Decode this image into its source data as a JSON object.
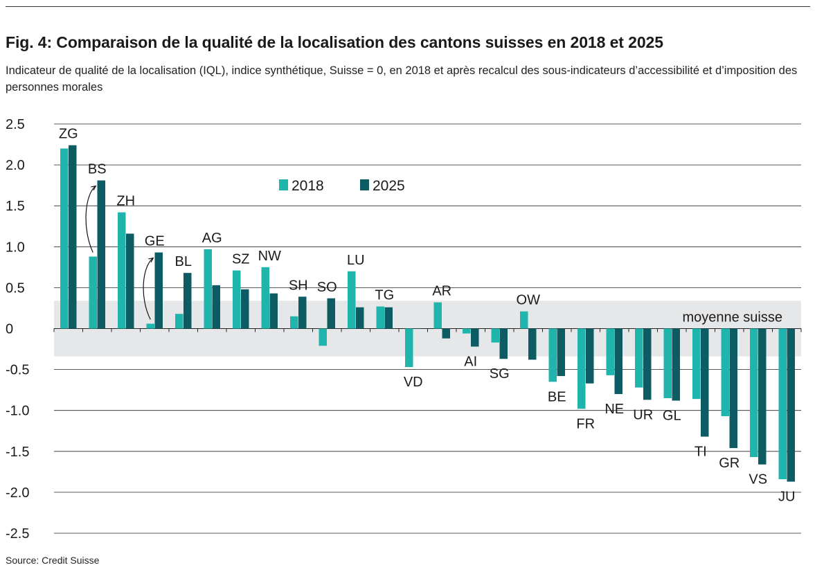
{
  "header": {
    "title": "Fig. 4: Comparaison de la qualité de la localisation des cantons suisses en 2018 et 2025",
    "subtitle": "Indicateur de qualité de la localisation (IQL), indice synthétique, Suisse = 0, en 2018 et après recalcul des sous-indicateurs d’accessibilité et d’imposition des personnes morales"
  },
  "footer": {
    "source": "Source: Credit Suisse"
  },
  "colors": {
    "series_2018": "#1fb5ad",
    "series_2025": "#0d5c63",
    "band": "#e6e7e8",
    "grid": "#222222"
  },
  "chart_data": {
    "type": "bar",
    "title": "Fig. 4: Comparaison de la qualité de la localisation des cantons suisses en 2018 et 2025",
    "subtitle": "Indicateur de qualité de la localisation (IQL), indice synthétique, Suisse = 0, en 2018 et après recalcul des sous-indicateurs d’accessibilité et d’imposition des personnes morales",
    "xlabel": "",
    "ylabel": "",
    "ylim": [
      -2.5,
      2.5
    ],
    "yticks": [
      "2.5",
      "2.0",
      "1.5",
      "1.0",
      "0.5",
      "0",
      "-0.5",
      "-1.0",
      "-1.5",
      "-2.0",
      "-2.5"
    ],
    "grid": true,
    "legend_position": "top-center",
    "categories": [
      "ZG",
      "BS",
      "ZH",
      "GE",
      "BL",
      "AG",
      "SZ",
      "NW",
      "SH",
      "SO",
      "LU",
      "TG",
      "VD",
      "AR",
      "AI",
      "SG",
      "OW",
      "BE",
      "FR",
      "NE",
      "UR",
      "GL",
      "TI",
      "GR",
      "VS",
      "JU"
    ],
    "series": [
      {
        "name": "2018",
        "values": [
          2.2,
          0.88,
          1.42,
          0.06,
          0.18,
          0.97,
          0.71,
          0.75,
          0.15,
          -0.21,
          0.7,
          0.27,
          -0.47,
          0.32,
          -0.06,
          -0.17,
          0.21,
          -0.65,
          -0.98,
          -0.57,
          -0.72,
          -0.85,
          -0.86,
          -1.07,
          -1.57,
          -1.84
        ]
      },
      {
        "name": "2025",
        "values": [
          2.24,
          1.81,
          1.16,
          0.93,
          0.68,
          0.53,
          0.48,
          0.43,
          0.39,
          0.37,
          0.26,
          0.26,
          0.0,
          -0.12,
          -0.22,
          -0.37,
          -0.38,
          -0.58,
          -0.67,
          -0.8,
          -0.87,
          -0.88,
          -1.32,
          -1.46,
          -1.66,
          -1.87
        ]
      }
    ],
    "band": {
      "label": "moyenne suisse",
      "range": [
        -0.34,
        0.34
      ]
    },
    "annotations": [
      {
        "type": "arrow",
        "category": "BS",
        "from_series": "2018",
        "to_series": "2025"
      },
      {
        "type": "arrow",
        "category": "GE",
        "from_series": "2018",
        "to_series": "2025"
      }
    ]
  }
}
